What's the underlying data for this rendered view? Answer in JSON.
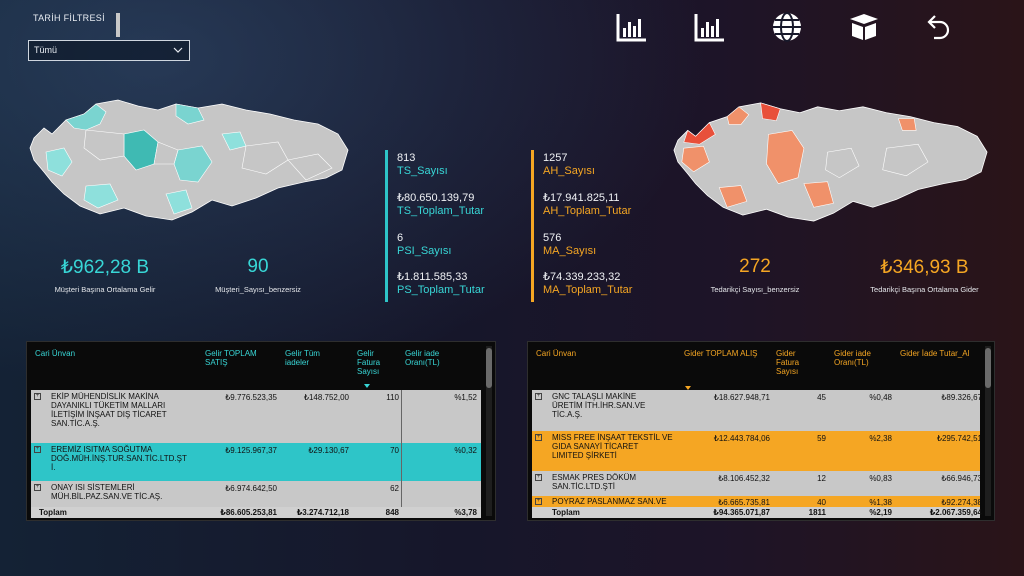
{
  "filter": {
    "title": "TARİH FİLTRESİ",
    "selected": "Tümü"
  },
  "top_icons": [
    "bar-chart-icon",
    "bar-chart-icon",
    "globe-icon",
    "box-icon",
    "undo-icon"
  ],
  "left_kpis": [
    {
      "value": "₺962,28 B",
      "label": "Müşteri Başına Ortalama Gelir"
    },
    {
      "value": "90",
      "label": "Müşteri_Sayısı_benzersiz"
    }
  ],
  "right_kpis": [
    {
      "value": "272",
      "label": "Tedarikçi Sayısı_benzersiz"
    },
    {
      "value": "₺346,93 B",
      "label": "Tedarikçi Başına Ortalama Gider"
    }
  ],
  "sales_stats": [
    {
      "value": "813",
      "label": "TS_Sayısı"
    },
    {
      "value": "₺80.650.139,79",
      "label": "TS_Toplam_Tutar"
    },
    {
      "value": "6",
      "label": "PSI_Sayısı"
    },
    {
      "value": "₺1.811.585,33",
      "label": "PS_Toplam_Tutar"
    }
  ],
  "purchase_stats": [
    {
      "value": "1257",
      "label": "AH_Sayısı"
    },
    {
      "value": "₺17.941.825,11",
      "label": "AH_Toplam_Tutar"
    },
    {
      "value": "576",
      "label": "MA_Sayısı"
    },
    {
      "value": "₺74.339.233,32",
      "label": "MA_Toplam_Tutar"
    }
  ],
  "sales_table": {
    "headers": [
      "Cari Ünvan",
      "Gelir TOPLAM SATIŞ",
      "Gelir Tüm iadeler",
      "Gelir Fatura Sayısı",
      "Gelir iade Oranı(TL)"
    ],
    "rows": [
      {
        "lines": [
          "EKİP MÜHENDİSLİK MAKİNA",
          "DAYANIKLI TÜKETİM MALLARI",
          "İLETİŞİM İNŞAAT DIŞ TİCARET",
          "SAN.TİC.A.Ş."
        ],
        "sales": "₺9.776.523,35",
        "returns": "₺148.752,00",
        "invoices": "110",
        "ratio": "%1,52",
        "highlight": false
      },
      {
        "lines": [
          "EREMİZ ISITMA SOĞUTMA",
          "DOĞ.MÜH.İNŞ.TUR.SAN.TİC.LTD.ŞT",
          "İ."
        ],
        "sales": "₺9.125.967,37",
        "returns": "₺29.130,67",
        "invoices": "70",
        "ratio": "%0,32",
        "highlight": true
      },
      {
        "lines": [
          "ONAY ISI SİSTEMLERİ",
          "MÜH.BİL.PAZ.SAN.VE TİC.AŞ."
        ],
        "sales": "₺6.974.642,50",
        "returns": "",
        "invoices": "62",
        "ratio": "",
        "highlight": false
      }
    ],
    "total": {
      "label": "Toplam",
      "sales": "₺86.605.253,81",
      "returns": "₺3.274.712,18",
      "invoices": "848",
      "ratio": "%3,78"
    }
  },
  "purchase_table": {
    "headers": [
      "Cari Ünvan",
      "Gider TOPLAM ALIŞ",
      "Gider Fatura Sayısı",
      "Gider iade Oranı(TL)",
      "Gider İade Tutar_Al"
    ],
    "rows": [
      {
        "lines": [
          "GNC TALAŞLI MAKİNE",
          "ÜRETİM İTH.İHR.SAN.VE",
          "TİC.A.Ş."
        ],
        "purchase": "₺18.627.948,71",
        "invoices": "45",
        "ratio": "%0,48",
        "refund": "₺89.326,67",
        "highlight": false
      },
      {
        "lines": [
          "MISS FREE İNŞAAT TEKSTİL VE",
          "GIDA SANAYİ TİCARET",
          "LIMITED ŞİRKETİ"
        ],
        "purchase": "₺12.443.784,06",
        "invoices": "59",
        "ratio": "%2,38",
        "refund": "₺295.742,51",
        "highlight": true
      },
      {
        "lines": [
          "ESMAK PRES DÖKÜM",
          "SAN.TİC.LTD.ŞTİ"
        ],
        "purchase": "₺8.106.452,32",
        "invoices": "12",
        "ratio": "%0,83",
        "refund": "₺66.946,73",
        "highlight": false
      },
      {
        "lines": [
          "POYRAZ PASLANMAZ SAN.VE"
        ],
        "purchase": "₺6.665.735,81",
        "invoices": "40",
        "ratio": "%1,38",
        "refund": "₺92.274,38",
        "highlight": true
      }
    ],
    "total": {
      "label": "Toplam",
      "purchase": "₺94.365.071,87",
      "invoices": "1811",
      "ratio": "%2,19",
      "refund": "₺2.067.359,64"
    }
  },
  "colors": {
    "cyan": "#38d6d6",
    "orange": "#f5a623",
    "map_gray": "#c6c6c6",
    "table_highlight_cyan": "#2ec5c8",
    "table_highlight_orange": "#f5a623"
  }
}
